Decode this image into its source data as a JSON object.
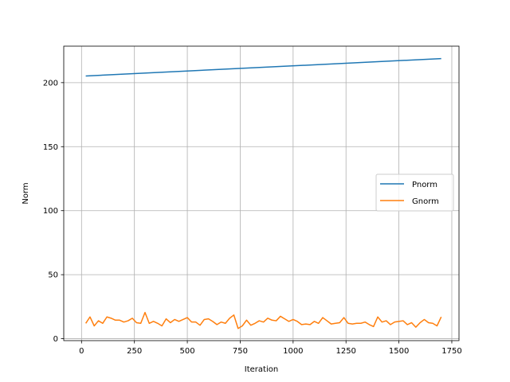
{
  "chart_data": {
    "type": "line",
    "title": "",
    "xlabel": "Iteration",
    "ylabel": "Norm",
    "xlim": [
      -84,
      1784
    ],
    "ylim": [
      -1.5,
      228.5
    ],
    "xticks": [
      0,
      250,
      500,
      750,
      1000,
      1250,
      1500,
      1750
    ],
    "yticks": [
      0,
      50,
      100,
      150,
      200
    ],
    "grid": true,
    "legend_position": "center-right",
    "series": [
      {
        "name": "Pnorm",
        "color": "#1f77b4",
        "x": [
          20,
          1700
        ],
        "y": [
          205.2,
          218.8
        ]
      },
      {
        "name": "Gnorm",
        "color": "#ff7f0e",
        "x": [
          20,
          40,
          60,
          80,
          100,
          120,
          140,
          160,
          180,
          200,
          220,
          240,
          260,
          280,
          300,
          320,
          340,
          360,
          380,
          400,
          420,
          440,
          460,
          480,
          500,
          520,
          540,
          560,
          580,
          600,
          620,
          640,
          660,
          680,
          700,
          720,
          740,
          760,
          780,
          800,
          820,
          840,
          860,
          880,
          900,
          920,
          940,
          960,
          980,
          1000,
          1020,
          1040,
          1060,
          1080,
          1100,
          1120,
          1140,
          1160,
          1180,
          1200,
          1220,
          1240,
          1260,
          1280,
          1300,
          1320,
          1340,
          1360,
          1380,
          1400,
          1420,
          1440,
          1460,
          1480,
          1500,
          1520,
          1540,
          1560,
          1580,
          1600,
          1620,
          1640,
          1660,
          1680,
          1700
        ],
        "y": [
          12,
          17,
          10,
          14,
          12,
          17,
          16,
          14.5,
          14.5,
          13,
          14,
          16,
          12.5,
          12,
          20.5,
          12,
          13.5,
          12,
          10,
          15.5,
          12.5,
          15,
          13.5,
          15,
          16.5,
          13,
          13,
          10.5,
          15,
          15.5,
          13.5,
          11,
          13,
          12,
          16,
          18.5,
          8,
          10,
          14.5,
          10.5,
          12,
          14,
          13,
          16,
          14.5,
          14,
          17.5,
          15.5,
          13.5,
          15,
          13.5,
          11,
          11.5,
          11,
          13.5,
          12,
          16.5,
          14,
          11.5,
          12,
          12.5,
          16.5,
          12,
          11.5,
          12,
          12,
          13,
          11,
          9.5,
          17,
          13,
          14,
          11,
          13,
          13.5,
          14,
          11,
          12.5,
          9,
          12.5,
          15,
          12.5,
          12,
          10,
          17
        ]
      }
    ]
  }
}
